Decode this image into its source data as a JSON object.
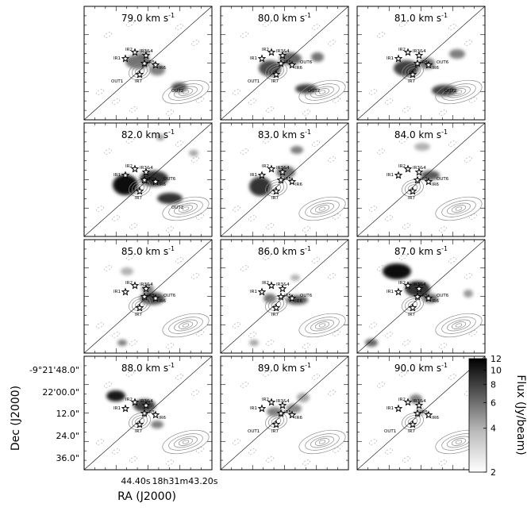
{
  "chart_data": {
    "type": "heatmap",
    "title": "",
    "xlabel": "RA (J2000)",
    "ylabel": "Dec (J2000)",
    "x_ticks": [
      "44.40s",
      "18h31m43.20s"
    ],
    "y_ticks": [
      "-9°21'48.0\"",
      "22'00.0\"",
      "12.0\"",
      "24.0\"",
      "36.0\""
    ],
    "colorbar": {
      "label": "Flux (Jy/beam)",
      "ticks": [
        12,
        10,
        8,
        6,
        4,
        2
      ],
      "range": [
        2,
        12
      ],
      "colormap": "gray_r"
    },
    "panels": [
      {
        "velocity": 79.0,
        "label": "79.0 km s",
        "unit_sup": "-1"
      },
      {
        "velocity": 80.0,
        "label": "80.0 km s",
        "unit_sup": "-1"
      },
      {
        "velocity": 81.0,
        "label": "81.0 km s",
        "unit_sup": "-1"
      },
      {
        "velocity": 82.0,
        "label": "82.0 km s",
        "unit_sup": "-1"
      },
      {
        "velocity": 83.0,
        "label": "83.0 km s",
        "unit_sup": "-1"
      },
      {
        "velocity": 84.0,
        "label": "84.0 km s",
        "unit_sup": "-1"
      },
      {
        "velocity": 85.0,
        "label": "85.0 km s",
        "unit_sup": "-1"
      },
      {
        "velocity": 86.0,
        "label": "86.0 km s",
        "unit_sup": "-1"
      },
      {
        "velocity": 87.0,
        "label": "87.0 km s",
        "unit_sup": "-1"
      },
      {
        "velocity": 88.0,
        "label": "88.0 km s",
        "unit_sup": "-1"
      },
      {
        "velocity": 89.0,
        "label": "89.0 km s",
        "unit_sup": "-1"
      },
      {
        "velocity": 90.0,
        "label": "90.0 km s",
        "unit_sup": "-1"
      }
    ],
    "sources": [
      "IR1",
      "IR2",
      "IR3&4",
      "IR5",
      "IR6",
      "IR7"
    ],
    "outflow_labels": {
      "79.0": [
        "OUT1",
        "OUT2"
      ],
      "80.0": [
        "OUT1",
        "OUT2",
        "OUT6"
      ],
      "81.0": [
        "OUT2",
        "OUT6"
      ],
      "82.0": [
        "OUT2",
        "OUT6"
      ],
      "84.0": [
        "OUT6"
      ],
      "85.0": [
        "OUT6"
      ],
      "86.0": [
        "OUT6"
      ],
      "87.0": [
        "OUT6"
      ],
      "89.0": [
        "OUT1"
      ],
      "90.0": [
        "OUT1"
      ]
    }
  }
}
